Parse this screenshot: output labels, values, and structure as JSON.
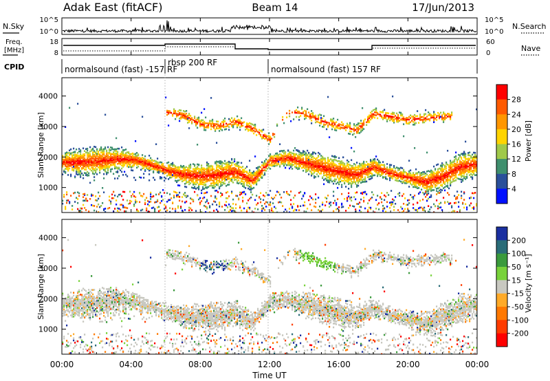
{
  "header": {
    "title": "Adak East (fitACF)",
    "beam": "Beam 14",
    "date": "17/Jun/2013"
  },
  "panels": {
    "nsky_label": "N.Sky",
    "nsearch_label": "N.Search",
    "nsky_ticks": [
      "10^5",
      "10^0"
    ],
    "nsearch_ticks": [
      "10^5",
      "10^0"
    ],
    "freq_label_top": "Freq.",
    "freq_label_bottom": "[MHz]",
    "freq_ticks": [
      "18",
      "8"
    ],
    "nave_label": "Nave",
    "nave_ticks": [
      "60",
      "0"
    ],
    "cpid_label": "CPID",
    "cpid_segments": [
      {
        "label": "normalsound (fast) -157 RF",
        "start_h": 0,
        "end_h": 6
      },
      {
        "label": "rbsp 200 RF",
        "start_h": 6,
        "end_h": 12
      },
      {
        "label": "normalsound (fast) 157 RF",
        "start_h": 12,
        "end_h": 24
      }
    ]
  },
  "power_colorbar": {
    "title": "Power [dB]",
    "ticks": [
      "28",
      "24",
      "20",
      "16",
      "12",
      "8",
      "4"
    ],
    "colors": [
      "#ff0000",
      "#ff5a00",
      "#ff9600",
      "#ffd400",
      "#a0c94a",
      "#3f8f6e",
      "#2a4f9a",
      "#0010ff"
    ]
  },
  "velocity_colorbar": {
    "title": "Velocity [m s⁻¹]",
    "ticks": [
      "200",
      "100",
      "50",
      "15",
      "-15",
      "-50",
      "-100",
      "-200"
    ],
    "colors": [
      "#1a2fa0",
      "#2a6c78",
      "#3a9a3c",
      "#78d23a",
      "#c8c8c0",
      "#ffaa28",
      "#ff7800",
      "#ff3c00",
      "#ff0000"
    ]
  },
  "x_axis": {
    "label": "Time UT",
    "ticks": [
      "00:00",
      "04:00",
      "08:00",
      "12:00",
      "16:00",
      "20:00",
      "00:00"
    ]
  },
  "y_axis": {
    "label": "Slant Range [km]",
    "ticks": [
      "1000",
      "2000",
      "3000",
      "4000"
    ]
  },
  "chart_data": [
    {
      "type": "heatmap",
      "title": "",
      "xlabel": "",
      "ylabel": "Slant Range [km]",
      "xlim": [
        0,
        24
      ],
      "ylim": [
        180,
        4600
      ],
      "colorbar": "Power [dB]",
      "bands": [
        {
          "name": "main",
          "t": [
            0,
            1,
            2,
            3,
            4,
            5,
            6,
            7,
            8,
            9,
            10,
            11,
            12,
            13,
            14,
            15,
            16,
            17,
            18,
            19,
            20,
            21,
            22,
            23,
            24
          ],
          "range_km": [
            1850,
            1850,
            1900,
            1950,
            1950,
            1800,
            1600,
            1450,
            1400,
            1450,
            1550,
            1250,
            1900,
            2000,
            1850,
            1700,
            1550,
            1450,
            1700,
            1500,
            1350,
            1200,
            1400,
            1700,
            1800
          ],
          "peak_db": 26
        },
        {
          "name": "upper",
          "t": [
            6,
            7,
            8,
            9,
            10,
            11,
            12,
            13,
            14,
            15,
            16,
            17,
            18,
            19,
            20,
            21,
            22
          ],
          "range_km": [
            3500,
            3400,
            3100,
            3050,
            3200,
            2950,
            2600,
            3500,
            3450,
            3200,
            3050,
            2900,
            3450,
            3350,
            3250,
            3300,
            3350
          ],
          "peak_db": 22
        }
      ]
    },
    {
      "type": "heatmap",
      "title": "",
      "xlabel": "Time UT",
      "ylabel": "Slant Range [km]",
      "xlim": [
        0,
        24
      ],
      "ylim": [
        180,
        4600
      ],
      "colorbar": "Velocity [m s⁻¹]",
      "bands": [
        {
          "name": "main",
          "t": [
            0,
            1,
            2,
            3,
            4,
            5,
            6,
            7,
            8,
            9,
            10,
            11,
            12,
            13,
            14,
            15,
            16,
            17,
            18,
            19,
            20,
            21,
            22,
            23,
            24
          ],
          "range_km": [
            1850,
            1850,
            1900,
            1950,
            1950,
            1800,
            1600,
            1450,
            1400,
            1450,
            1550,
            1250,
            1900,
            2000,
            1850,
            1700,
            1550,
            1450,
            1700,
            1500,
            1350,
            1200,
            1400,
            1700,
            1800
          ],
          "velocity_ms": 0
        },
        {
          "name": "upper",
          "t": [
            6,
            7,
            8,
            9,
            10,
            11,
            12,
            13,
            14,
            15,
            16,
            17,
            18,
            19,
            20,
            21,
            22
          ],
          "range_km": [
            3500,
            3400,
            3100,
            3050,
            3200,
            2950,
            2600,
            3500,
            3450,
            3200,
            3050,
            2900,
            3450,
            3350,
            3250,
            3300,
            3350
          ],
          "velocity_ms": 0
        }
      ]
    }
  ]
}
